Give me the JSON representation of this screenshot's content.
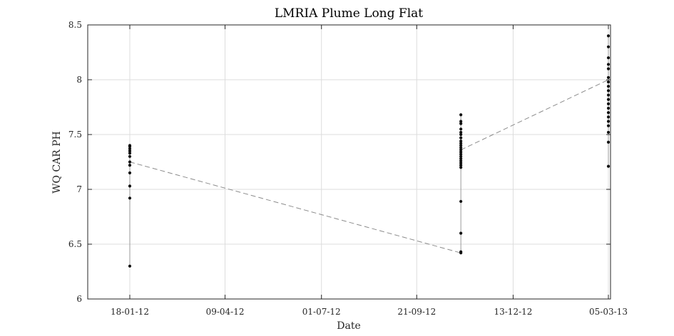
{
  "chart_data": {
    "type": "scatter",
    "title": "LMRIA Plume Long Flat",
    "xlabel": "Date",
    "ylabel": "WQ CAR PH",
    "ylim": [
      6,
      8.5
    ],
    "yticks": [
      "6",
      "6.5",
      "7",
      "7.5",
      "8",
      "8.5"
    ],
    "xticks": [
      "18-01-12",
      "09-04-12",
      "01-07-12",
      "21-09-12",
      "13-12-12",
      "05-03-13"
    ],
    "grid": true,
    "series": [
      {
        "markers": "black dots",
        "points": [
          {
            "date": "18-01-12",
            "values": [
              6.3,
              6.92,
              7.03,
              7.15,
              7.22,
              7.25,
              7.3,
              7.33,
              7.35,
              7.37,
              7.39,
              7.4
            ]
          },
          {
            "date": "29-10-12",
            "values": [
              6.42,
              6.43,
              6.6,
              6.89,
              7.2,
              7.22,
              7.24,
              7.26,
              7.28,
              7.3,
              7.32,
              7.34,
              7.36,
              7.38,
              7.4,
              7.42,
              7.44,
              7.47,
              7.5,
              7.52,
              7.55,
              7.6,
              7.62,
              7.68
            ]
          },
          {
            "date": "05-03-13",
            "values": [
              7.21,
              7.43,
              7.52,
              7.58,
              7.62,
              7.66,
              7.7,
              7.74,
              7.78,
              7.82,
              7.86,
              7.9,
              7.94,
              7.98,
              8.02,
              8.1,
              8.14,
              8.2,
              8.3,
              8.4
            ]
          }
        ]
      }
    ],
    "trend_lines": [
      {
        "style": "dashed gray",
        "from": {
          "date": "18-01-12",
          "value": 7.25
        },
        "to": {
          "date": "29-10-12",
          "value": 6.42
        }
      },
      {
        "style": "dashed gray",
        "from": {
          "date": "29-10-12",
          "value": 7.36
        },
        "to": {
          "date": "05-03-13",
          "value": 8.0
        }
      }
    ]
  }
}
